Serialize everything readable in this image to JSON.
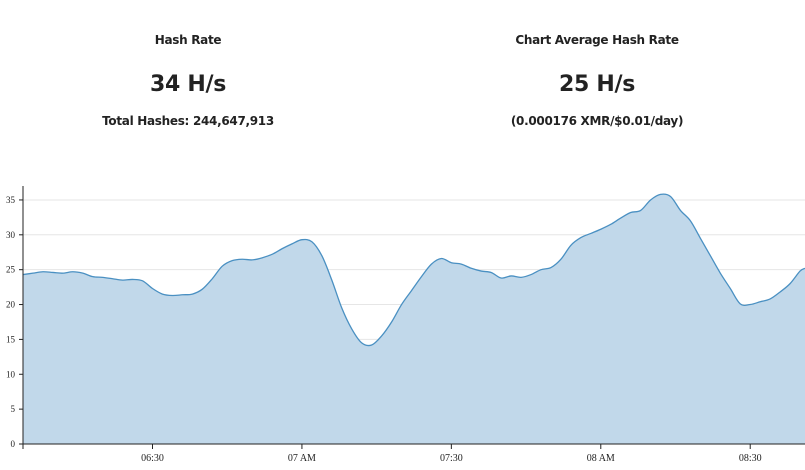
{
  "stats": {
    "hash_rate": {
      "label": "Hash Rate",
      "value": "34 H/s",
      "sub": "Total Hashes: 244,647,913"
    },
    "average": {
      "label": "Chart Average Hash Rate",
      "value": "25 H/s",
      "sub": "(0.000176 XMR/$0.01/day)"
    }
  },
  "colors": {
    "area_fill": "#c1d8ea",
    "line": "#4a90c2",
    "grid": "#e6e6e6",
    "axis": "#222222"
  },
  "chart_data": {
    "type": "area",
    "title": "",
    "xlabel": "",
    "ylabel": "",
    "ylim": [
      0,
      37
    ],
    "xlim": [
      "06:04",
      "08:41"
    ],
    "y_ticks": [
      0,
      5,
      10,
      15,
      20,
      25,
      30,
      35
    ],
    "x_ticks": [
      {
        "value": "06:30",
        "label": "06:30"
      },
      {
        "value": "07:00",
        "label": "07 AM"
      },
      {
        "value": "07:30",
        "label": "07:30"
      },
      {
        "value": "08:00",
        "label": "08 AM"
      },
      {
        "value": "08:30",
        "label": "08:30"
      }
    ],
    "grid": true,
    "x": [
      "06:04",
      "06:06",
      "06:08",
      "06:10",
      "06:12",
      "06:14",
      "06:16",
      "06:18",
      "06:20",
      "06:22",
      "06:24",
      "06:26",
      "06:28",
      "06:30",
      "06:32",
      "06:34",
      "06:36",
      "06:38",
      "06:40",
      "06:42",
      "06:44",
      "06:46",
      "06:48",
      "06:50",
      "06:52",
      "06:54",
      "06:56",
      "06:58",
      "07:00",
      "07:02",
      "07:04",
      "07:06",
      "07:08",
      "07:10",
      "07:12",
      "07:14",
      "07:16",
      "07:18",
      "07:20",
      "07:22",
      "07:24",
      "07:26",
      "07:28",
      "07:30",
      "07:32",
      "07:34",
      "07:36",
      "07:38",
      "07:40",
      "07:42",
      "07:44",
      "07:46",
      "07:48",
      "07:50",
      "07:52",
      "07:54",
      "07:56",
      "07:58",
      "08:00",
      "08:02",
      "08:04",
      "08:06",
      "08:08",
      "08:10",
      "08:12",
      "08:14",
      "08:16",
      "08:18",
      "08:20",
      "08:22",
      "08:24",
      "08:26",
      "08:28",
      "08:30",
      "08:32",
      "08:34",
      "08:36",
      "08:38",
      "08:40",
      "08:41"
    ],
    "series": [
      {
        "name": "",
        "values": [
          24.3,
          24.5,
          24.7,
          24.6,
          24.5,
          24.7,
          24.5,
          24.0,
          23.9,
          23.7,
          23.5,
          23.6,
          23.4,
          22.3,
          21.5,
          21.3,
          21.4,
          21.5,
          22.2,
          23.7,
          25.5,
          26.3,
          26.5,
          26.4,
          26.7,
          27.2,
          28.0,
          28.7,
          29.3,
          29.0,
          27.0,
          23.5,
          19.5,
          16.5,
          14.5,
          14.2,
          15.5,
          17.5,
          20.0,
          22.0,
          24.0,
          25.8,
          26.6,
          26.0,
          25.8,
          25.2,
          24.8,
          24.6,
          23.8,
          24.1,
          23.9,
          24.3,
          25.0,
          25.3,
          26.5,
          28.5,
          29.6,
          30.2,
          30.8,
          31.5,
          32.4,
          33.2,
          33.5,
          35.0,
          35.8,
          35.5,
          33.5,
          32.0,
          29.5,
          27.0,
          24.5,
          22.3,
          20.1,
          20.0,
          20.4,
          20.8,
          21.8,
          23.0,
          24.8,
          25.2
        ]
      }
    ]
  }
}
